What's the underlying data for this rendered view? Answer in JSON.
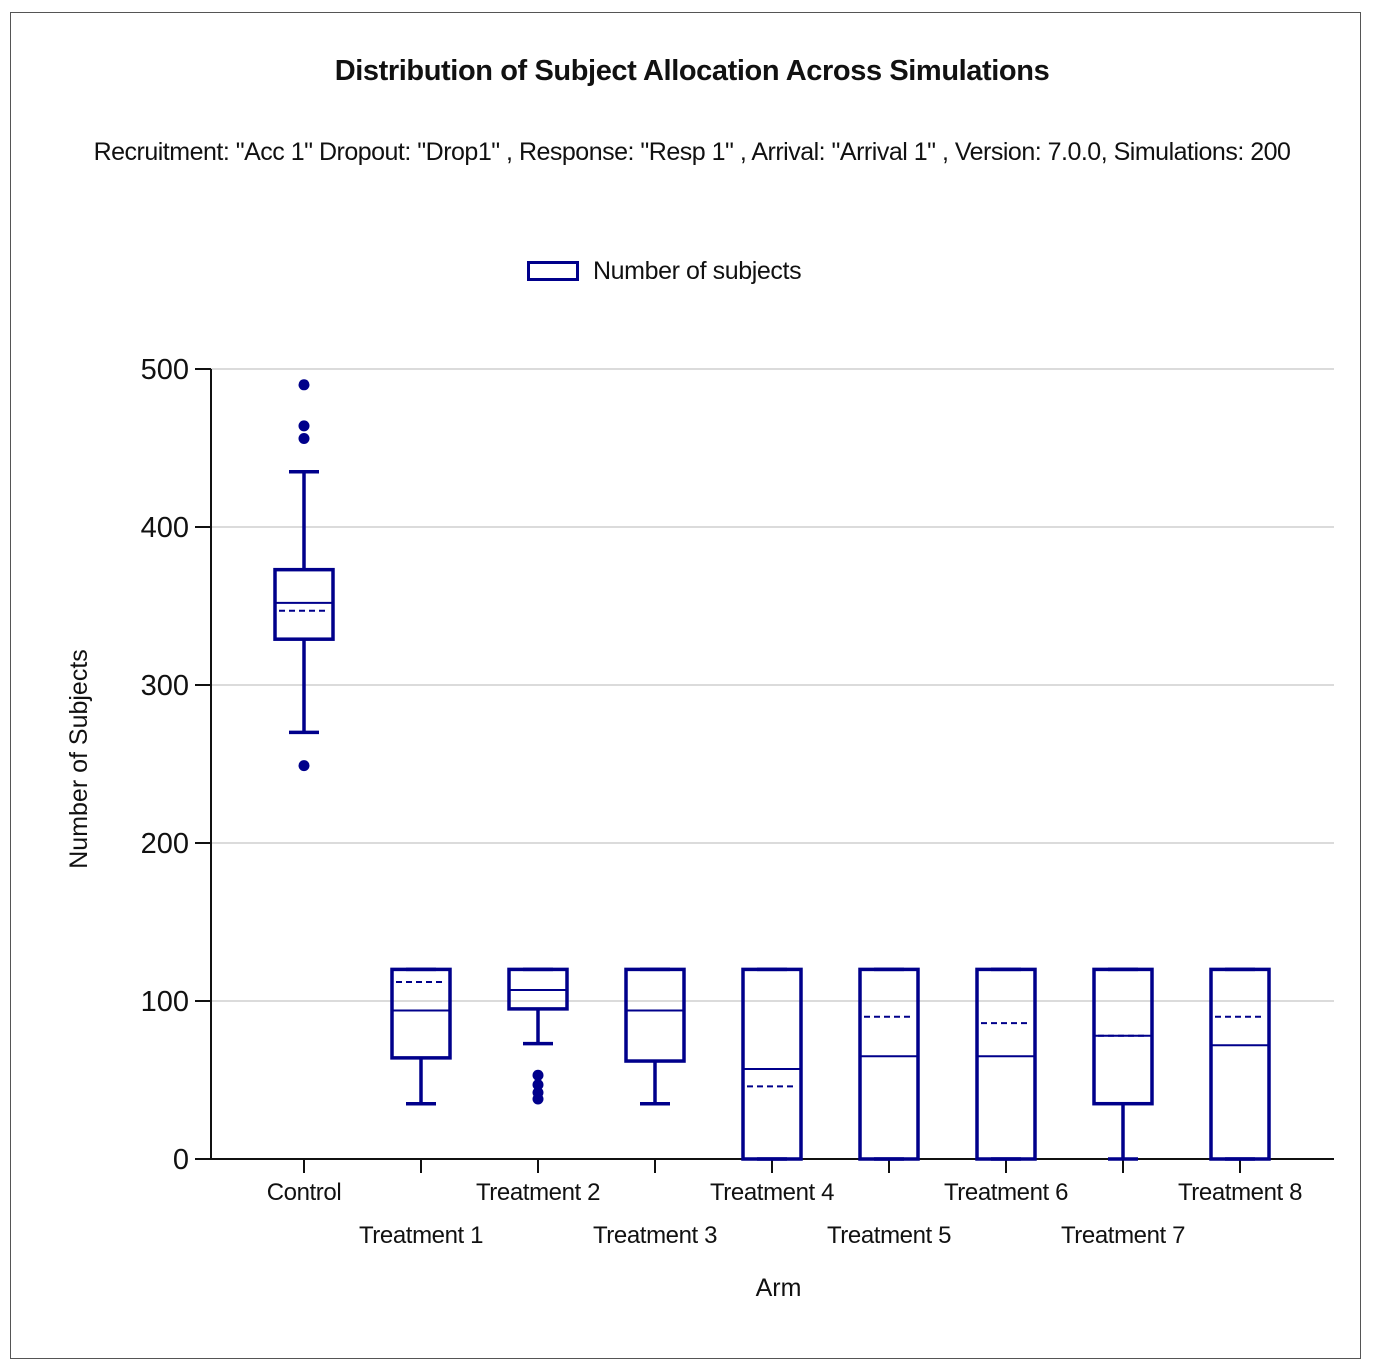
{
  "chart_data": {
    "type": "box",
    "title": "Distribution of Subject Allocation Across Simulations",
    "subtitle": "Recruitment: \"Acc 1\" Dropout: \"Drop1\" , Response: \"Resp 1\" , Arrival: \"Arrival 1\" , Version: 7.0.0, Simulations: 200",
    "xlabel": "Arm",
    "ylabel": "Number of Subjects",
    "ylim": [
      0,
      500
    ],
    "yticks": [
      0,
      100,
      200,
      300,
      400,
      500
    ],
    "grid": true,
    "legend": {
      "label": "Number of subjects",
      "position": "top-center"
    },
    "color": "#00008b",
    "categories": [
      "Control",
      "Treatment 1",
      "Treatment 2",
      "Treatment 3",
      "Treatment 4",
      "Treatment 5",
      "Treatment 6",
      "Treatment 7",
      "Treatment 8"
    ],
    "boxes": [
      {
        "name": "Control",
        "whisker_low": 270,
        "q1": 329,
        "median": 352,
        "mean": 347,
        "q3": 373,
        "whisker_high": 435,
        "outliers": [
          249,
          456,
          464,
          490
        ]
      },
      {
        "name": "Treatment 1",
        "whisker_low": 35,
        "q1": 64,
        "median": 94,
        "mean": 112,
        "q3": 120,
        "whisker_high": 120,
        "outliers": []
      },
      {
        "name": "Treatment 2",
        "whisker_low": 73,
        "q1": 95,
        "median": 107,
        "mean": 107,
        "q3": 120,
        "whisker_high": 120,
        "outliers": [
          38,
          42,
          47,
          53
        ]
      },
      {
        "name": "Treatment 3",
        "whisker_low": 35,
        "q1": 62,
        "median": 94,
        "mean": 94,
        "q3": 120,
        "whisker_high": 120,
        "outliers": []
      },
      {
        "name": "Treatment 4",
        "whisker_low": 0,
        "q1": 0,
        "median": 57,
        "mean": 46,
        "q3": 120,
        "whisker_high": 120,
        "outliers": []
      },
      {
        "name": "Treatment 5",
        "whisker_low": 0,
        "q1": 0,
        "median": 65,
        "mean": 90,
        "q3": 120,
        "whisker_high": 120,
        "outliers": []
      },
      {
        "name": "Treatment 6",
        "whisker_low": 0,
        "q1": 0,
        "median": 65,
        "mean": 86,
        "q3": 120,
        "whisker_high": 120,
        "outliers": []
      },
      {
        "name": "Treatment 7",
        "whisker_low": 0,
        "q1": 35,
        "median": 78,
        "mean": 78,
        "q3": 120,
        "whisker_high": 120,
        "outliers": []
      },
      {
        "name": "Treatment 8",
        "whisker_low": 0,
        "q1": 0,
        "median": 72,
        "mean": 90,
        "q3": 120,
        "whisker_high": 120,
        "outliers": []
      }
    ]
  }
}
